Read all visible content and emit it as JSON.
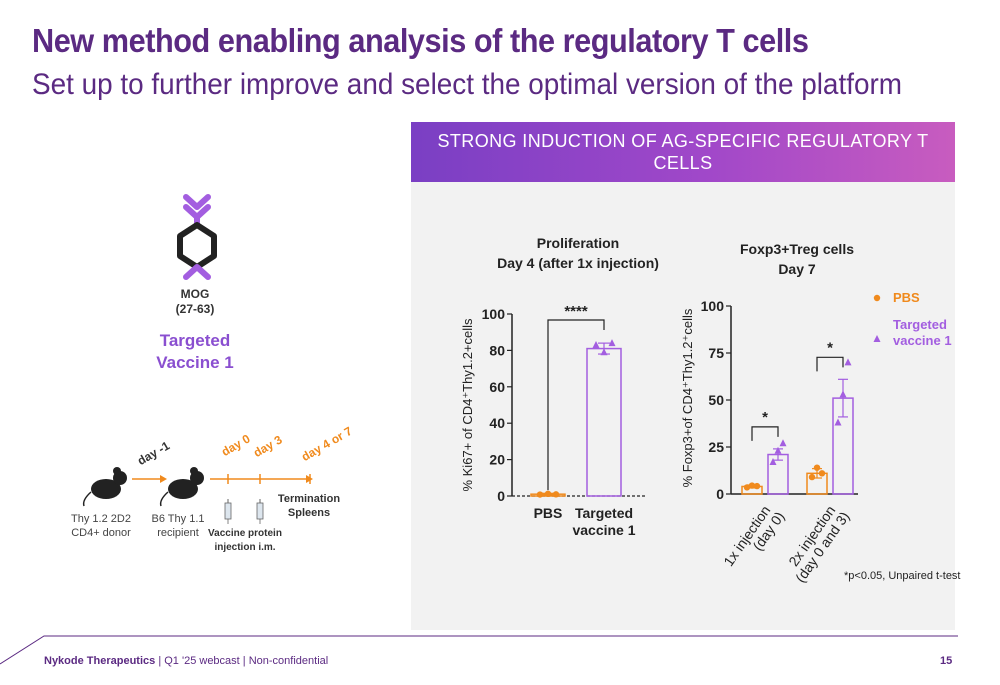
{
  "title": "New method enabling analysis of the regulatory T cells",
  "subtitle": "Set up to further improve and select the optimal version of the platform",
  "panel": {
    "header": "STRONG INDUCTION OF AG-SPECIFIC REGULATORY T CELLS"
  },
  "vaccine": {
    "mog_label_line1": "MOG",
    "mog_label_line2": "(27-63)",
    "targeted_line1": "Targeted",
    "targeted_line2": "Vaccine 1"
  },
  "timeline": {
    "donor_line1": "Thy 1.2 2D2",
    "donor_line2": "CD4+ donor",
    "recipient_line1": "B6 Thy 1.1",
    "recipient_line2": "recipient",
    "day_minus1": "day -1",
    "day0": "day 0",
    "day3": "day 3",
    "day4or7": "day 4 or 7",
    "injection_line1": "Vaccine protein",
    "injection_line2": "injection i.m.",
    "termination_line1": "Termination",
    "termination_line2": "Spleens"
  },
  "colors": {
    "brand_purple": "#5b2a82",
    "pbs_orange": "#f08a1d",
    "vaccine_purple": "#a35ee0",
    "header_start": "#7a3fc4",
    "header_end": "#c85cbf"
  },
  "chart_data": [
    {
      "type": "bar",
      "title_line1": "Proliferation",
      "title_line2": "Day 4 (after 1x injection)",
      "ylabel": "% Ki67+ of CD4⁺Thy1.2+cells",
      "ylim": [
        0,
        100
      ],
      "yticks": [
        0,
        20,
        40,
        60,
        80,
        100
      ],
      "categories": [
        "PBS",
        "Targeted vaccine 1"
      ],
      "category_lines": [
        [
          "PBS"
        ],
        [
          "Targeted",
          "vaccine 1"
        ]
      ],
      "values": [
        1,
        81
      ],
      "error": [
        0.5,
        3
      ],
      "points": [
        [
          0.8,
          1.2,
          0.9
        ],
        [
          83,
          79,
          84
        ]
      ],
      "significance": [
        {
          "from": 0,
          "to": 1,
          "label": "****"
        }
      ]
    },
    {
      "type": "bar",
      "title_line1": "Foxp3+Treg cells",
      "title_line2": "Day 7",
      "ylabel": "% Foxp3+of CD4⁺Thy1.2⁺cells",
      "ylim": [
        0,
        100
      ],
      "yticks": [
        0,
        25,
        50,
        75,
        100
      ],
      "categories": [
        "1x injection (day 0)",
        "2x injection (day 0 and 3)"
      ],
      "category_lines": [
        [
          "1x injection",
          "(day 0)"
        ],
        [
          "2x injection",
          "(day 0 and 3)"
        ]
      ],
      "series": [
        {
          "name": "PBS",
          "values": [
            4,
            11
          ],
          "error": [
            0.8,
            2.5
          ],
          "points": [
            [
              3.5,
              4.5,
              4.2
            ],
            [
              9,
              14,
              11
            ]
          ]
        },
        {
          "name": "Targeted vaccine 1",
          "values": [
            21,
            51
          ],
          "error": [
            3,
            10
          ],
          "points": [
            [
              17,
              23,
              27
            ],
            [
              38,
              53,
              70
            ]
          ]
        }
      ],
      "significance": [
        {
          "group": 0,
          "label": "*"
        },
        {
          "group": 1,
          "label": "*"
        }
      ],
      "legend": [
        "PBS",
        "Targeted vaccine 1"
      ],
      "legend_lines": [
        [
          "PBS"
        ],
        [
          "Targeted",
          "vaccine 1"
        ]
      ],
      "legend_position": "right",
      "footnote": "*p<0.05, Unpaired t-test"
    }
  ],
  "footer": {
    "company": "Nykode Therapeutics",
    "sep1": " | ",
    "event": "Q1 '25 webcast",
    "sep2": " | ",
    "confidentiality": "Non-confidential",
    "page": "15"
  }
}
